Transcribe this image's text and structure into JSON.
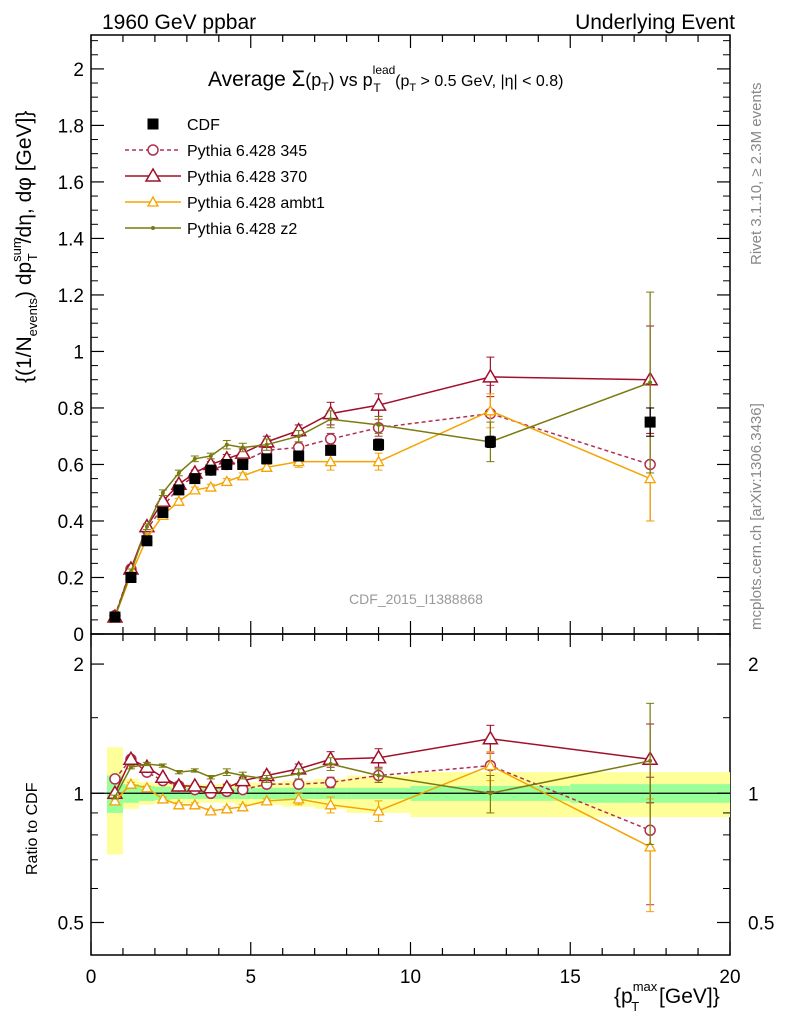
{
  "header": {
    "left": "1960 GeV ppbar",
    "right": "Underlying Event"
  },
  "side": {
    "rivet": "Rivet 3.1.10, ≥ 2.3M events",
    "mcplots": "mcplots.cern.ch [arXiv:1306.3436]"
  },
  "watermark": "CDF_2015_I1388868",
  "title": {
    "main": "Average ",
    "sigma": "Σ",
    "pt_open": "(p",
    "pt_sub": "T",
    "pt_close": ")",
    "vs": " vs p",
    "lead_sup": "lead",
    "lead_sub": "T",
    "cuts_a": " (p",
    "cuts_sub": "T",
    "cuts_b": " > 0.5 GeV, |η| < 0.8)"
  },
  "ylabel_main": {
    "a": "{(1/N",
    "events": "events",
    "b": ") dp",
    "sum": "sum",
    "T": "T",
    "c": "/dη, dφ [GeV]}"
  },
  "ylabel_ratio": "Ratio to CDF",
  "xlabel": {
    "a": "{p",
    "max": "max",
    "T": "T",
    "b": " [GeV]}"
  },
  "colors": {
    "data": "#000000",
    "p345": "#b03050",
    "p370": "#a0102a",
    "ambt1": "#f5a300",
    "z2": "#7a7a10",
    "band_inner": "#99ff99",
    "band_outer": "#ffff99",
    "axis": "#000000",
    "grey_text": "#888888"
  },
  "chart_data": {
    "type": "line",
    "xlabel": "{p_T^max [GeV]}",
    "xlim": [
      0,
      20
    ],
    "main": {
      "ylim": [
        0,
        2.12
      ],
      "yticks": [
        0,
        0.2,
        0.4,
        0.6,
        0.8,
        1,
        1.2,
        1.4,
        1.6,
        1.8,
        2
      ],
      "yticklabels": [
        "0",
        "0.2",
        "0.4",
        "0.6",
        "0.8",
        "1",
        "1.2",
        "1.4",
        "1.6",
        "1.8",
        "2"
      ]
    },
    "ratio": {
      "scale": "log",
      "ylim": [
        0.42,
        2.35
      ],
      "yticks": [
        0.5,
        1,
        2
      ],
      "yticklabels": [
        "0.5",
        "1",
        "2"
      ]
    },
    "xticks": [
      0,
      5,
      10,
      15,
      20
    ],
    "xticklabels": [
      "0",
      "5",
      "10",
      "15",
      "20"
    ],
    "data_bins": [
      [
        0.5,
        1.0
      ],
      [
        1.0,
        1.5
      ],
      [
        1.5,
        2.0
      ],
      [
        2.0,
        2.5
      ],
      [
        2.5,
        3.0
      ],
      [
        3.0,
        3.5
      ],
      [
        3.5,
        4.0
      ],
      [
        4.0,
        4.5
      ],
      [
        4.5,
        5.0
      ],
      [
        5.0,
        6.0
      ],
      [
        6.0,
        7.0
      ],
      [
        7.0,
        8.0
      ],
      [
        8.0,
        10.0
      ],
      [
        10.0,
        15.0
      ],
      [
        15.0,
        20.0
      ]
    ],
    "data_band_inner": [
      0.1,
      0.05,
      0.04,
      0.035,
      0.03,
      0.03,
      0.03,
      0.03,
      0.03,
      0.03,
      0.03,
      0.03,
      0.03,
      0.04,
      0.05
    ],
    "data_band_outer": [
      0.28,
      0.08,
      0.06,
      0.05,
      0.05,
      0.05,
      0.05,
      0.05,
      0.06,
      0.06,
      0.07,
      0.08,
      0.1,
      0.12,
      0.12
    ],
    "series": [
      {
        "name": "CDF",
        "key": "data",
        "style": "square",
        "x": [
          0.75,
          1.25,
          1.75,
          2.25,
          2.75,
          3.25,
          3.75,
          4.25,
          4.75,
          5.5,
          6.5,
          7.5,
          9.0,
          12.5,
          17.5
        ],
        "y": [
          0.06,
          0.2,
          0.33,
          0.43,
          0.51,
          0.55,
          0.58,
          0.6,
          0.6,
          0.62,
          0.63,
          0.65,
          0.67,
          0.68,
          0.75
        ],
        "err": [
          0.005,
          0.01,
          0.01,
          0.01,
          0.01,
          0.01,
          0.01,
          0.01,
          0.01,
          0.01,
          0.01,
          0.01,
          0.02,
          0.02,
          0.05
        ],
        "ratio": [
          1,
          1,
          1,
          1,
          1,
          1,
          1,
          1,
          1,
          1,
          1,
          1,
          1,
          1,
          1
        ]
      },
      {
        "name": "Pythia 6.428 345",
        "key": "p345",
        "style": "circle",
        "dashed": true,
        "x": [
          0.75,
          1.25,
          1.75,
          2.25,
          2.75,
          3.25,
          3.75,
          4.25,
          4.75,
          5.5,
          6.5,
          7.5,
          9.0,
          12.5,
          17.5
        ],
        "y": [
          0.065,
          0.23,
          0.37,
          0.45,
          0.52,
          0.56,
          0.58,
          0.6,
          0.61,
          0.65,
          0.66,
          0.69,
          0.73,
          0.78,
          0.6
        ],
        "err": [
          0.005,
          0.01,
          0.01,
          0.01,
          0.01,
          0.01,
          0.01,
          0.01,
          0.01,
          0.02,
          0.02,
          0.02,
          0.03,
          0.1,
          0.2
        ],
        "ratio": [
          1.08,
          1.2,
          1.12,
          1.07,
          1.04,
          1.02,
          1.0,
          1.01,
          1.02,
          1.05,
          1.05,
          1.06,
          1.1,
          1.16,
          0.82
        ],
        "ratio_err": [
          0.01,
          0.01,
          0.01,
          0.01,
          0.01,
          0.01,
          0.01,
          0.01,
          0.01,
          0.02,
          0.02,
          0.03,
          0.04,
          0.15,
          0.27
        ]
      },
      {
        "name": "Pythia 6.428 370",
        "key": "p370",
        "style": "triangle",
        "x": [
          0.75,
          1.25,
          1.75,
          2.25,
          2.75,
          3.25,
          3.75,
          4.25,
          4.75,
          5.5,
          6.5,
          7.5,
          9.0,
          12.5,
          17.5
        ],
        "y": [
          0.06,
          0.23,
          0.38,
          0.47,
          0.53,
          0.57,
          0.6,
          0.62,
          0.64,
          0.68,
          0.72,
          0.78,
          0.81,
          0.91,
          0.9
        ],
        "err": [
          0.005,
          0.01,
          0.01,
          0.01,
          0.01,
          0.01,
          0.01,
          0.015,
          0.015,
          0.02,
          0.02,
          0.04,
          0.04,
          0.07,
          0.19
        ],
        "ratio": [
          1.0,
          1.2,
          1.15,
          1.09,
          1.04,
          1.04,
          1.03,
          1.03,
          1.07,
          1.1,
          1.14,
          1.2,
          1.21,
          1.34,
          1.2
        ],
        "ratio_err": [
          0.01,
          0.01,
          0.01,
          0.01,
          0.01,
          0.01,
          0.01,
          0.02,
          0.02,
          0.02,
          0.03,
          0.05,
          0.06,
          0.1,
          0.25
        ]
      },
      {
        "name": "Pythia 6.428 ambt1",
        "key": "ambt1",
        "style": "triangle-small",
        "x": [
          0.75,
          1.25,
          1.75,
          2.25,
          2.75,
          3.25,
          3.75,
          4.25,
          4.75,
          5.5,
          6.5,
          7.5,
          9.0,
          12.5,
          17.5
        ],
        "y": [
          0.06,
          0.21,
          0.34,
          0.42,
          0.47,
          0.51,
          0.52,
          0.54,
          0.56,
          0.59,
          0.61,
          0.61,
          0.61,
          0.79,
          0.55
        ],
        "err": [
          0.005,
          0.01,
          0.01,
          0.01,
          0.01,
          0.01,
          0.01,
          0.01,
          0.01,
          0.01,
          0.02,
          0.03,
          0.03,
          0.06,
          0.15
        ],
        "ratio": [
          0.96,
          1.05,
          1.03,
          0.97,
          0.94,
          0.94,
          0.91,
          0.92,
          0.93,
          0.96,
          0.97,
          0.94,
          0.91,
          1.16,
          0.75
        ],
        "ratio_err": [
          0.01,
          0.01,
          0.01,
          0.01,
          0.01,
          0.01,
          0.01,
          0.01,
          0.01,
          0.01,
          0.03,
          0.04,
          0.05,
          0.09,
          0.22
        ]
      },
      {
        "name": "Pythia 6.428 z2",
        "key": "z2",
        "style": "dot",
        "x": [
          0.75,
          1.25,
          1.75,
          2.25,
          2.75,
          3.25,
          3.75,
          4.25,
          4.75,
          5.5,
          6.5,
          7.5,
          9.0,
          12.5,
          17.5
        ],
        "y": [
          0.06,
          0.22,
          0.38,
          0.5,
          0.57,
          0.62,
          0.63,
          0.67,
          0.66,
          0.67,
          0.7,
          0.76,
          0.74,
          0.68,
          0.89
        ],
        "err": [
          0.005,
          0.01,
          0.01,
          0.01,
          0.01,
          0.01,
          0.01,
          0.015,
          0.015,
          0.02,
          0.02,
          0.03,
          0.03,
          0.07,
          0.32
        ],
        "ratio": [
          0.98,
          1.15,
          1.17,
          1.16,
          1.12,
          1.13,
          1.09,
          1.12,
          1.1,
          1.08,
          1.11,
          1.17,
          1.1,
          1.0,
          1.19
        ],
        "ratio_err": [
          0.01,
          0.01,
          0.01,
          0.01,
          0.01,
          0.01,
          0.01,
          0.02,
          0.02,
          0.02,
          0.03,
          0.04,
          0.04,
          0.1,
          0.43
        ]
      }
    ]
  }
}
